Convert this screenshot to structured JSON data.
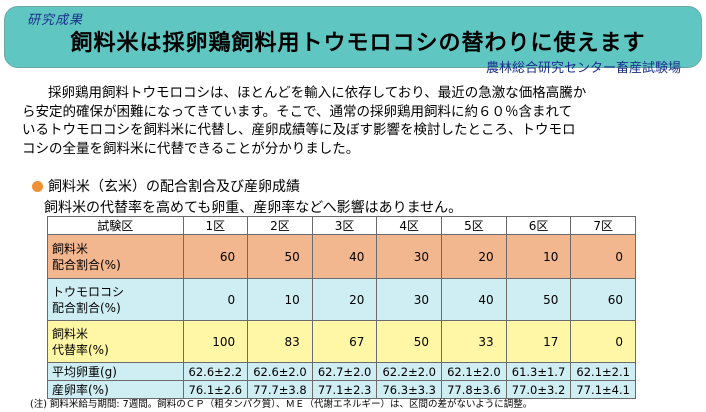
{
  "header": {
    "tag": "研究成果",
    "title": "飼料米は採卵鶏飼料用トウモロコシの替わりに使えます",
    "organization": "農林総合研究センター畜産試験場"
  },
  "body_text": {
    "line1": "採卵鶏用飼料トウモロコシは、ほとんどを輸入に依存しており、最近の急激な価格高騰か",
    "line2": "ら安定的確保が困難になってきています。そこで、通常の採卵鶏用飼料に約６０％含まれて",
    "line3": "いるトウモロコシを飼料米に代替し、産卵成績等に及ぼす影響を検討したところ、トウモロ",
    "line4": "コシの全量を飼料米に代替できることが分かりました。"
  },
  "section": {
    "heading": "飼料米（玄米）の配合割合及び産卵成績",
    "subheading": "飼料米の代替率を高めても卵重、産卵率などへ影響はありません。"
  },
  "table": {
    "header": [
      "試験区",
      "1区",
      "2区",
      "3区",
      "4区",
      "5区",
      "6区",
      "7区"
    ],
    "rows": [
      {
        "label1": "飼料米",
        "label2": "配合割合(%)",
        "values": [
          "60",
          "50",
          "40",
          "30",
          "20",
          "10",
          "0"
        ]
      },
      {
        "label1": "トウモロコシ",
        "label2": "配合割合(%)",
        "values": [
          "0",
          "10",
          "20",
          "30",
          "40",
          "50",
          "60"
        ]
      },
      {
        "label1": "飼料米",
        "label2": "代替率(%)",
        "values": [
          "100",
          "83",
          "67",
          "50",
          "33",
          "17",
          "0"
        ]
      }
    ],
    "stats": [
      {
        "label": "平均卵重(g)",
        "values": [
          "62.6±2.2",
          "62.6±2.0",
          "62.7±2.0",
          "62.2±2.0",
          "62.1±2.0",
          "61.3±1.7",
          "62.1±2.1"
        ]
      },
      {
        "label": "産卵率(%)",
        "values": [
          "76.1±2.6",
          "77.7±3.8",
          "77.1±2.3",
          "76.3±3.3",
          "77.8±3.6",
          "77.0±3.2",
          "77.1±4.1"
        ]
      }
    ]
  },
  "note": "(注) 飼料米給与期間: 7週間。飼料のＣＰ（粗タンパク質）、ＭＥ（代謝エネルギー）は、区間の差がないように調整。",
  "colors": {
    "banner": "#5fc6c2",
    "rice_row": "#f3b78f",
    "corn_row": "#cfeef4",
    "substitution_row": "#fff7a6",
    "bullet": "#f08f34"
  }
}
